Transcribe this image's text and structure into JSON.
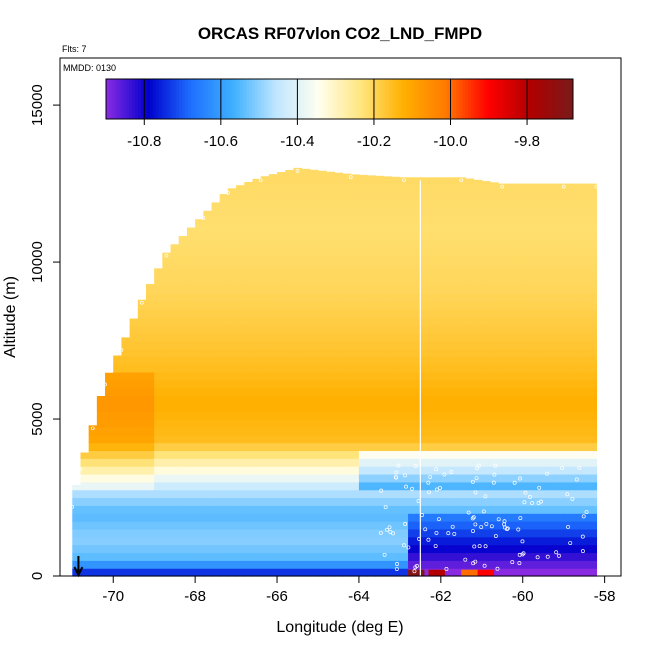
{
  "chart_data": {
    "type": "heatmap",
    "title": "ORCAS RF07vlon CO2_LND_FMPD",
    "annotations": {
      "flights": "Flts: 7",
      "mmdd": "MMDD: 0130"
    },
    "xlabel": "Longitude (deg E)",
    "ylabel": "Altitude (m)",
    "xlim": [
      -71.3,
      -57.6
    ],
    "ylim": [
      0,
      16500
    ],
    "x_ticks": [
      -70,
      -68,
      -66,
      -64,
      -62,
      -60,
      -58
    ],
    "x_tick_labels": [
      "-70",
      "-68",
      "-66",
      "-64",
      "-62",
      "-60",
      "-58"
    ],
    "y_ticks": [
      0,
      5000,
      10000,
      15000
    ],
    "y_tick_labels": [
      "0",
      "5000",
      "10000",
      "15000"
    ],
    "colorbar": {
      "range": [
        -10.9,
        -9.68
      ],
      "ticks": [
        -10.8,
        -10.6,
        -10.4,
        -10.2,
        -10.0,
        -9.8
      ],
      "tick_labels": [
        "-10.8",
        "-10.6",
        "-10.4",
        "-10.2",
        "-10.0",
        "-9.8"
      ],
      "colors": [
        "#8a2be2",
        "#0000cd",
        "#1e6fff",
        "#3fb0ff",
        "#bfe6ff",
        "#fffff0",
        "#ffe680",
        "#ffb000",
        "#ff7a00",
        "#ff0000",
        "#b00000",
        "#7a1a1a"
      ]
    },
    "ceiling": [
      [
        -71.0,
        2300
      ],
      [
        -70.8,
        3500
      ],
      [
        -70.5,
        4800
      ],
      [
        -70.2,
        6200
      ],
      [
        -69.8,
        7300
      ],
      [
        -69.3,
        8800
      ],
      [
        -68.7,
        10300
      ],
      [
        -67.8,
        11500
      ],
      [
        -67.2,
        12300
      ],
      [
        -66.4,
        12700
      ],
      [
        -65.5,
        13000
      ],
      [
        -64.2,
        12800
      ],
      [
        -62.9,
        12700
      ],
      [
        -61.5,
        12700
      ],
      [
        -60.5,
        12500
      ],
      [
        -59.0,
        12500
      ],
      [
        -58.2,
        12500
      ]
    ],
    "profile": [
      {
        "alt": 100,
        "value": -10.75
      },
      {
        "alt": 500,
        "value": -10.55
      },
      {
        "alt": 1200,
        "value": -10.5
      },
      {
        "alt": 2000,
        "value": -10.55
      },
      {
        "alt": 2800,
        "value": -10.45
      },
      {
        "alt": 3500,
        "value": -10.3
      },
      {
        "alt": 4300,
        "value": -10.15
      },
      {
        "alt": 5500,
        "value": -10.12
      },
      {
        "alt": 7000,
        "value": -10.16
      },
      {
        "alt": 9000,
        "value": -10.2
      },
      {
        "alt": 11000,
        "value": -10.22
      },
      {
        "alt": 13000,
        "value": -10.21
      }
    ],
    "east_low_patch": {
      "x_start": -62.8,
      "alt_top": 1800,
      "value": -10.9
    },
    "surface_hotspots": [
      {
        "x": -62.6,
        "value": -9.7
      },
      {
        "x": -62.1,
        "value": -9.8
      },
      {
        "x": -61.3,
        "value": -10.0
      },
      {
        "x": -60.9,
        "value": -9.9
      }
    ],
    "vertical_line_x": -62.5,
    "arrow_x": -70.85,
    "grid": false,
    "legend": "colorbar-top-inside"
  }
}
